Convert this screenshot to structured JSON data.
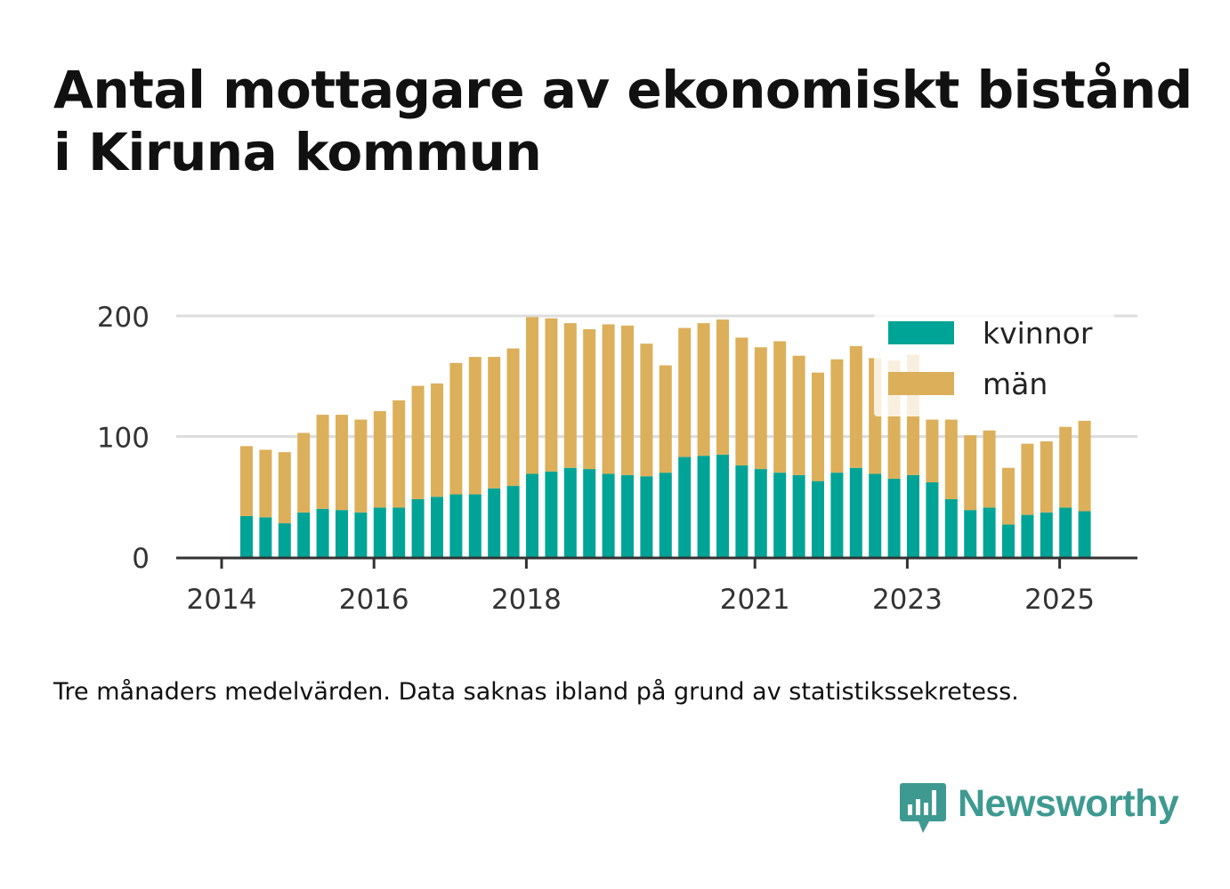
{
  "title_lines": [
    "Antal mottagare av ekonomiskt bistånd",
    "i Kiruna kommun"
  ],
  "caption": "Tre månaders medelvärden. Data saknas ibland på grund av statistikssekretess.",
  "brand": {
    "name": "Newsworthy",
    "icon": "bar-chart-speech-bubble-icon",
    "color": "#3e9a91"
  },
  "chart_data": {
    "type": "bar",
    "stacked": true,
    "ylim": [
      0,
      200
    ],
    "y_ticks": [
      0,
      100,
      200
    ],
    "grid": true,
    "legend_position": "top-right",
    "x_ticks": [
      {
        "label": "2014",
        "pos": 0
      },
      {
        "label": "2016",
        "pos": 8
      },
      {
        "label": "2018",
        "pos": 16
      },
      {
        "label": "2021",
        "pos": 28
      },
      {
        "label": "2023",
        "pos": 36
      },
      {
        "label": "2025",
        "pos": 44
      }
    ],
    "categories": [
      "2014 Q2",
      "2014 Q3",
      "2014 Q4",
      "2015 Q1",
      "2015 Q2",
      "2015 Q3",
      "2015 Q4",
      "2016 Q1",
      "2016 Q2",
      "2016 Q3",
      "2016 Q4",
      "2017 Q1",
      "2017 Q2",
      "2017 Q3",
      "2017 Q4",
      "2018 Q1",
      "2018 Q2",
      "2018 Q3",
      "2018 Q4",
      "2019 Q1",
      "2019 Q2",
      "2019 Q3",
      "2019 Q4",
      "2020 Q1",
      "2020 Q2",
      "2020 Q3",
      "2020 Q4",
      "2021 Q1",
      "2021 Q2",
      "2021 Q3",
      "2021 Q4",
      "2022 Q1",
      "2022 Q2",
      "2022 Q3",
      "2022 Q4",
      "2023 Q1",
      "2023 Q2",
      "2023 Q3",
      "2023 Q4",
      "2024 Q1",
      "2024 Q2",
      "2024 Q3",
      "2024 Q4",
      "2025 Q1",
      "2025 Q2"
    ],
    "series": [
      {
        "name": "kvinnor",
        "color": "#00a496",
        "values": [
          34,
          33,
          28,
          37,
          40,
          39,
          37,
          41,
          41,
          48,
          50,
          52,
          52,
          57,
          59,
          69,
          71,
          74,
          73,
          69,
          68,
          67,
          70,
          83,
          84,
          85,
          76,
          73,
          70,
          68,
          63,
          70,
          74,
          69,
          65,
          68,
          62,
          48,
          39,
          41,
          27,
          35,
          37,
          41,
          38
        ]
      },
      {
        "name": "män",
        "color": "#dcaf5a",
        "values": [
          58,
          56,
          59,
          66,
          78,
          79,
          77,
          80,
          89,
          94,
          94,
          109,
          114,
          109,
          114,
          130,
          127,
          120,
          116,
          124,
          124,
          110,
          89,
          107,
          110,
          112,
          106,
          101,
          109,
          99,
          90,
          94,
          101,
          96,
          98,
          100,
          52,
          66,
          62,
          64,
          47,
          59,
          59,
          67,
          75
        ]
      }
    ]
  }
}
